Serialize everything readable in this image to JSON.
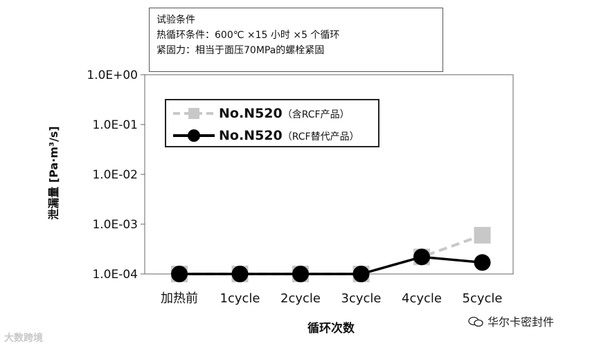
{
  "conditions": {
    "heading": "试验条件",
    "line1": "热循环条件：600℃ ×15 小时 ×5 个循环",
    "line2": "紧固力：相当于面压70MPa的螺栓紧固"
  },
  "chart_data": {
    "type": "line",
    "title": "",
    "xlabel": "循环次数",
    "ylabel": "泄漏量 [Pa·m³/s]",
    "yscale": "log",
    "ylim": [
      0.0001,
      1
    ],
    "grid": false,
    "legend": "upper-left inside plot",
    "categories": [
      "加热前",
      "1cycle",
      "2cycle",
      "3cycle",
      "4cycle",
      "5cycle"
    ],
    "yticks": [
      "1.0E+00",
      "1.0E-01",
      "1.0E-02",
      "1.0E-03",
      "1.0E-04"
    ],
    "series": [
      {
        "name": "No.N520",
        "name_note": "（含RCF产品）",
        "color": "#c8c8c8",
        "marker": "square",
        "line": "dashed",
        "values": [
          0.0001,
          0.0001,
          0.0001,
          0.0001,
          0.00022,
          0.0006
        ]
      },
      {
        "name": "No.N520",
        "name_note": "（RCF替代产品）",
        "color": "#000000",
        "marker": "circle",
        "line": "solid",
        "values": [
          0.0001,
          0.0001,
          0.0001,
          0.0001,
          0.00022,
          0.00017
        ]
      }
    ]
  },
  "watermarks": {
    "left": "大数跨境",
    "right": "华尔卡密封件"
  }
}
